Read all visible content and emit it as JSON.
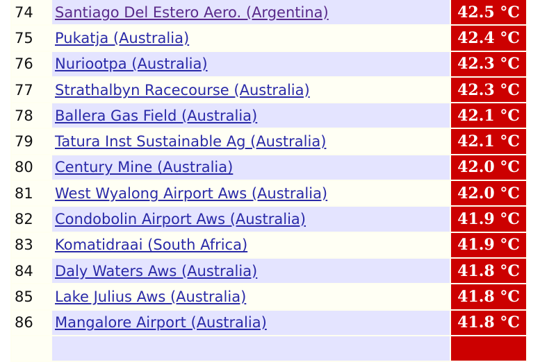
{
  "table": {
    "rows": [
      [
        "74",
        "Santiago Del Estero Aero. (Argentina)",
        "42.5 °C"
      ],
      [
        "75",
        "Pukatja (Australia)",
        "42.4 °C"
      ],
      [
        "76",
        "Nuriootpa (Australia)",
        "42.3 °C"
      ],
      [
        "77",
        "Strathalbyn Racecourse (Australia)",
        "42.3 °C"
      ],
      [
        "78",
        "Ballera Gas Field (Australia)",
        "42.1 °C"
      ],
      [
        "79",
        "Tatura Inst Sustainable Ag (Australia)",
        "42.1 °C"
      ],
      [
        "80",
        "Century Mine (Australia)",
        "42.0 °C"
      ],
      [
        "81",
        "West Wyalong Airport Aws (Australia)",
        "42.0 °C"
      ],
      [
        "82",
        "Condobolin Airport Aws (Australia)",
        "41.9 °C"
      ],
      [
        "83",
        "Komatidraai (South Africa)",
        "41.9 °C"
      ],
      [
        "84",
        "Daly Waters Aws (Australia)",
        "41.8 °C"
      ],
      [
        "85",
        "Lake Julius Aws (Australia)",
        "41.8 °C"
      ],
      [
        "86",
        "Mangalore Airport (Australia)",
        "41.8 °C"
      ]
    ]
  }
}
